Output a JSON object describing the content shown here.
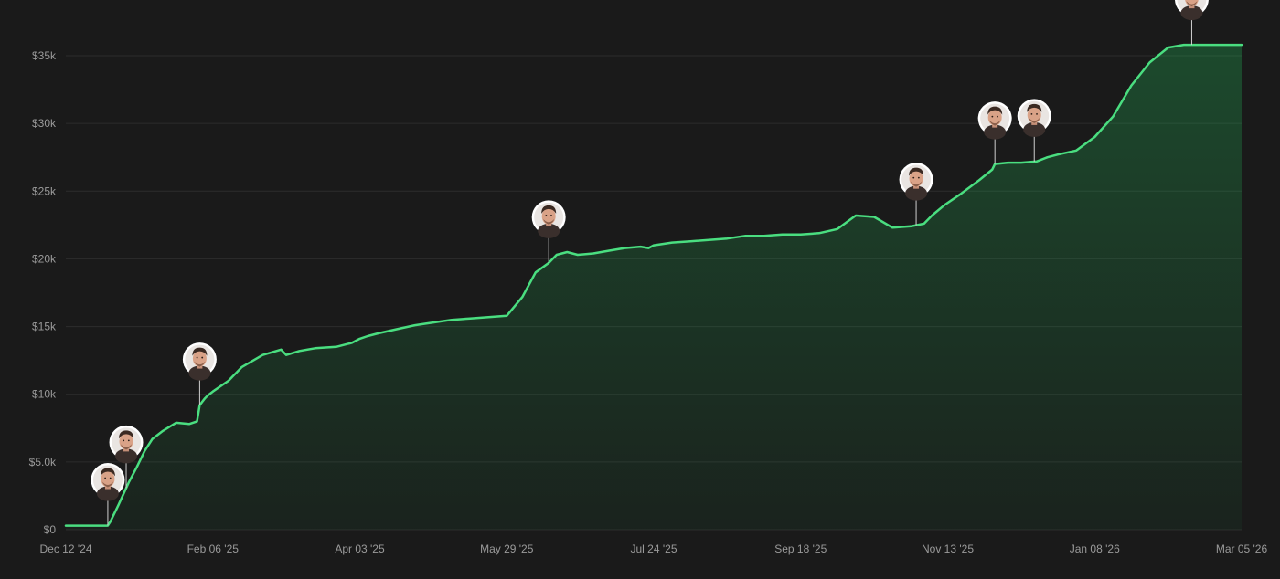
{
  "chart_data": {
    "type": "area",
    "title": "",
    "xlabel": "",
    "ylabel": "",
    "ylim": [
      0,
      35000
    ],
    "y_ticks": [
      {
        "value": 0,
        "label": "$0"
      },
      {
        "value": 5000,
        "label": "$5.0k"
      },
      {
        "value": 10000,
        "label": "$10k"
      },
      {
        "value": 15000,
        "label": "$15k"
      },
      {
        "value": 20000,
        "label": "$20k"
      },
      {
        "value": 25000,
        "label": "$25k"
      },
      {
        "value": 30000,
        "label": "$30k"
      },
      {
        "value": 35000,
        "label": "$35k"
      }
    ],
    "xlim": [
      "2024-12-12",
      "2026-03-05"
    ],
    "x_ticks": [
      {
        "date": "2024-12-12",
        "label": "Dec 12 '24"
      },
      {
        "date": "2025-02-06",
        "label": "Feb 06 '25"
      },
      {
        "date": "2025-04-03",
        "label": "Apr 03 '25"
      },
      {
        "date": "2025-05-29",
        "label": "May 29 '25"
      },
      {
        "date": "2025-07-24",
        "label": "Jul 24 '25"
      },
      {
        "date": "2025-09-18",
        "label": "Sep 18 '25"
      },
      {
        "date": "2025-11-13",
        "label": "Nov 13 '25"
      },
      {
        "date": "2026-01-08",
        "label": "Jan 08 '26"
      },
      {
        "date": "2026-03-05",
        "label": "Mar 05 '26"
      }
    ],
    "grid": true,
    "line_color": "#4ade80",
    "fill_color": "#22c55e",
    "background": "#1a1a1a",
    "series": [
      {
        "x": [
          "2024-12-12",
          "2024-12-28",
          "2024-12-29",
          "2025-01-01",
          "2025-01-05",
          "2025-01-08",
          "2025-01-11",
          "2025-01-14",
          "2025-01-18",
          "2025-01-23",
          "2025-01-28",
          "2025-01-31",
          "2025-02-01",
          "2025-02-03",
          "2025-02-04",
          "2025-02-06",
          "2025-02-12",
          "2025-02-17",
          "2025-02-25",
          "2025-03-04",
          "2025-03-06",
          "2025-03-11",
          "2025-03-17",
          "2025-03-25",
          "2025-03-31",
          "2025-04-03",
          "2025-04-06",
          "2025-04-10",
          "2025-04-17",
          "2025-04-24",
          "2025-05-01",
          "2025-05-08",
          "2025-05-15",
          "2025-05-22",
          "2025-05-29",
          "2025-06-04",
          "2025-06-09",
          "2025-06-14",
          "2025-06-17",
          "2025-06-21",
          "2025-06-25",
          "2025-07-01",
          "2025-07-07",
          "2025-07-13",
          "2025-07-19",
          "2025-07-22",
          "2025-07-24",
          "2025-07-31",
          "2025-08-07",
          "2025-08-14",
          "2025-08-21",
          "2025-08-28",
          "2025-09-04",
          "2025-09-11",
          "2025-09-18",
          "2025-09-25",
          "2025-10-02",
          "2025-10-09",
          "2025-10-16",
          "2025-10-23",
          "2025-10-30",
          "2025-11-04",
          "2025-11-07",
          "2025-11-12",
          "2025-11-18",
          "2025-11-25",
          "2025-11-30",
          "2025-12-01",
          "2025-12-06",
          "2025-12-11",
          "2025-12-17",
          "2025-12-21",
          "2025-12-25",
          "2026-01-01",
          "2026-01-08",
          "2026-01-15",
          "2026-01-22",
          "2026-01-29",
          "2026-02-05",
          "2026-02-11",
          "2026-02-14",
          "2026-02-16",
          "2026-02-20",
          "2026-02-25",
          "2026-03-01",
          "2026-03-05"
        ],
        "values": [
          300,
          300,
          600,
          1800,
          3500,
          4600,
          5800,
          6700,
          7300,
          7900,
          7800,
          8000,
          9200,
          9700,
          9900,
          10200,
          11000,
          12000,
          12900,
          13300,
          12900,
          13200,
          13400,
          13500,
          13800,
          14100,
          14300,
          14500,
          14800,
          15100,
          15300,
          15500,
          15600,
          15700,
          15800,
          17200,
          19000,
          19700,
          20300,
          20500,
          20300,
          20400,
          20600,
          20800,
          20900,
          20800,
          21000,
          21200,
          21300,
          21400,
          21500,
          21700,
          21700,
          21800,
          21800,
          21900,
          22200,
          23200,
          23100,
          22300,
          22400,
          22600,
          23200,
          24000,
          24800,
          25800,
          26600,
          27000,
          27100,
          27100,
          27200,
          27500,
          27700,
          28000,
          29000,
          30500,
          32800,
          34500,
          35600,
          35800,
          35800,
          35800,
          35800,
          35800,
          35800,
          35800
        ],
        "name": ""
      }
    ],
    "milestone_dates": [
      "2024-12-28",
      "2025-01-04",
      "2025-02-01",
      "2025-06-14",
      "2025-11-01",
      "2025-12-01",
      "2025-12-16",
      "2026-02-14"
    ]
  }
}
